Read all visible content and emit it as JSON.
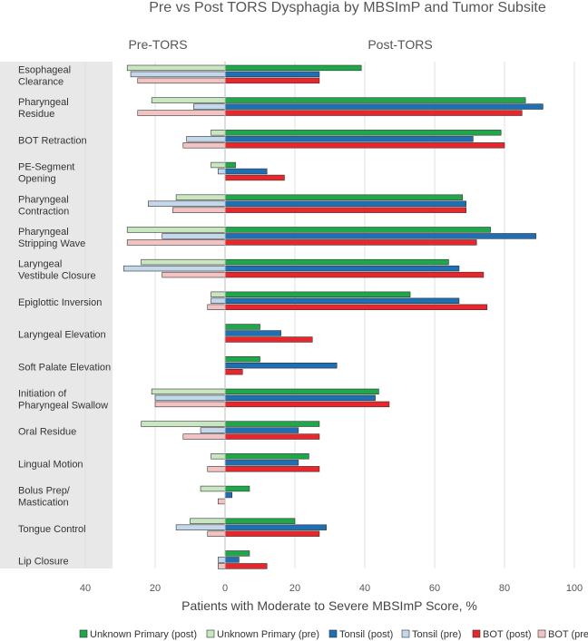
{
  "chart_data": {
    "type": "bar",
    "orientation": "horizontal",
    "title": "Pre vs Post TORS Dysphagia by MBSImP and Tumor Subsite",
    "left_header": "Pre-TORS",
    "right_header": "Post-TORS",
    "xlabel": "Patients with Moderate to Severe MBSImP Score, %",
    "xlim": [
      -40,
      100
    ],
    "xticks": [
      -40,
      -20,
      0,
      20,
      40,
      60,
      80,
      100
    ],
    "xtick_labels": [
      "40",
      "20",
      "0",
      "20",
      "40",
      "60",
      "80",
      "100"
    ],
    "grid": true,
    "legend_position": "bottom",
    "categories": [
      [
        "Esophageal",
        "Clearance"
      ],
      [
        "Pharyngeal",
        "Residue"
      ],
      [
        "BOT Retraction"
      ],
      [
        "PE-Segment",
        "Opening"
      ],
      [
        "Pharyngeal",
        "Contraction"
      ],
      [
        "Pharyngeal",
        "Stripping Wave"
      ],
      [
        "Laryngeal",
        "Vestibule Closure"
      ],
      [
        "Epiglottic Inversion"
      ],
      [
        "Laryngeal Elevation"
      ],
      [
        "Soft Palate Elevation"
      ],
      [
        "Initiation of",
        "Pharyngeal Swallow"
      ],
      [
        "Oral Residue"
      ],
      [
        "Lingual Motion"
      ],
      [
        "Bolus Prep/",
        "Mastication"
      ],
      [
        "Tongue Control"
      ],
      [
        "Lip Closure"
      ]
    ],
    "series": [
      {
        "name": "Unknown Primary (post)",
        "side": "post",
        "color": "#1ea84a",
        "values": [
          39,
          86,
          79,
          3,
          68,
          76,
          64,
          53,
          10,
          10,
          44,
          27,
          24,
          7,
          20,
          7
        ]
      },
      {
        "name": "Unknown Primary (pre)",
        "side": "pre",
        "color": "#c8e6c0",
        "values": [
          28,
          21,
          4,
          4,
          14,
          28,
          24,
          4,
          0,
          0,
          21,
          24,
          4,
          7,
          10,
          0
        ]
      },
      {
        "name": "Tonsil (post)",
        "side": "post",
        "color": "#1f6fb5",
        "values": [
          27,
          91,
          71,
          12,
          69,
          89,
          67,
          67,
          16,
          32,
          43,
          21,
          21,
          2,
          29,
          4
        ]
      },
      {
        "name": "Tonsil (pre)",
        "side": "pre",
        "color": "#c4d8ec",
        "values": [
          27,
          9,
          11,
          2,
          22,
          18,
          29,
          4,
          0,
          0,
          20,
          7,
          0,
          0,
          14,
          2
        ]
      },
      {
        "name": "BOT (post)",
        "side": "post",
        "color": "#e8262b",
        "values": [
          27,
          85,
          80,
          17,
          69,
          72,
          74,
          75,
          25,
          5,
          47,
          27,
          27,
          0,
          27,
          12
        ]
      },
      {
        "name": "BOT (pre)",
        "side": "pre",
        "color": "#f3c3c3",
        "values": [
          25,
          25,
          12,
          0,
          15,
          28,
          18,
          5,
          0,
          0,
          20,
          12,
          5,
          2,
          5,
          2
        ]
      }
    ]
  }
}
